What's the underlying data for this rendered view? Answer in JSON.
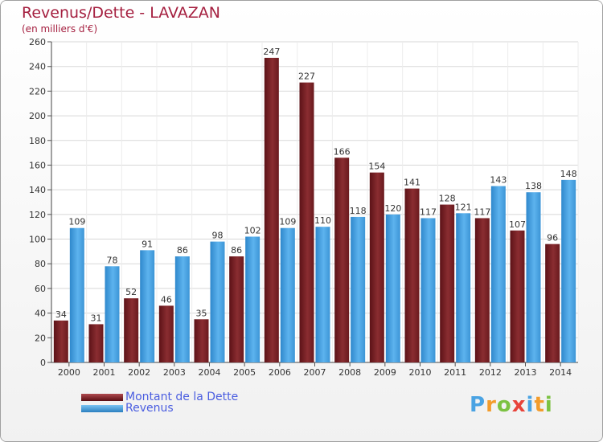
{
  "title": "Revenus/Dette - LAVAZAN",
  "subtitle": "(en milliers d'€)",
  "colors": {
    "dette": "#7a2328",
    "revenus": "#4aa3e3",
    "title": "#a52040",
    "legend_text": "#4a5de0"
  },
  "legend": [
    {
      "label": "Montant de la Dette",
      "color": "#7a2328"
    },
    {
      "label": "Revenus",
      "color": "#4aa3e3"
    }
  ],
  "logo": {
    "letters": [
      "P",
      "r",
      "o",
      "x",
      "i",
      "t",
      "i"
    ],
    "colors": [
      "#4aa3e3",
      "#f39c2b",
      "#7cc242",
      "#e8433a",
      "#4aa3e3",
      "#f39c2b",
      "#7cc242"
    ]
  },
  "chart_data": {
    "type": "bar",
    "categories": [
      "2000",
      "2001",
      "2002",
      "2003",
      "2004",
      "2005",
      "2006",
      "2007",
      "2008",
      "2009",
      "2010",
      "2011",
      "2012",
      "2013",
      "2014"
    ],
    "series": [
      {
        "name": "Montant de la Dette",
        "values": [
          34,
          31,
          52,
          46,
          35,
          86,
          247,
          227,
          166,
          154,
          141,
          128,
          117,
          107,
          96
        ]
      },
      {
        "name": "Revenus",
        "values": [
          109,
          78,
          91,
          86,
          98,
          102,
          109,
          110,
          118,
          120,
          117,
          121,
          143,
          138,
          148
        ]
      }
    ],
    "ylim": [
      0,
      260
    ],
    "yticks": [
      0,
      20,
      40,
      60,
      80,
      100,
      120,
      140,
      160,
      180,
      200,
      220,
      240,
      260
    ],
    "grid": true,
    "legend_position": "bottom-left"
  }
}
